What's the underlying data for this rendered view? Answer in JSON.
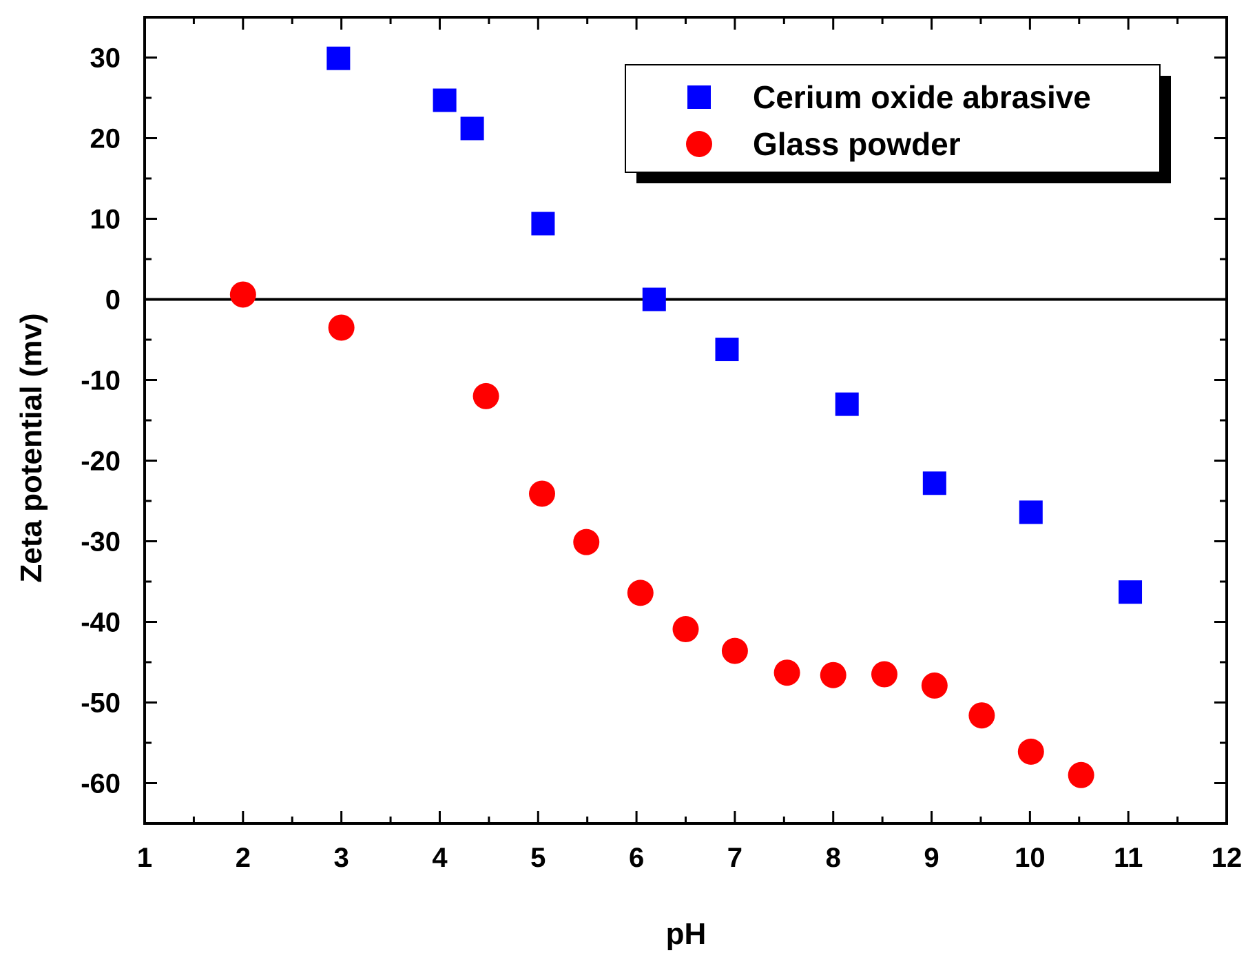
{
  "chart_data": {
    "type": "scatter",
    "title": "",
    "xlabel": "pH",
    "ylabel": "Zeta potential (mv)",
    "xlim": [
      1,
      12
    ],
    "ylim": [
      -65,
      35
    ],
    "xticks": [
      1,
      2,
      3,
      4,
      5,
      6,
      7,
      8,
      9,
      10,
      11,
      12
    ],
    "yticks": [
      30,
      20,
      10,
      0,
      -10,
      -20,
      -30,
      -40,
      -50,
      -60
    ],
    "xtick_labels": [
      "1",
      "2",
      "3",
      "4",
      "5",
      "6",
      "7",
      "8",
      "9",
      "10",
      "11",
      "12"
    ],
    "ytick_labels": [
      "30",
      "20",
      "10",
      "0",
      "-10",
      "-20",
      "-30",
      "-40",
      "-50",
      "-60"
    ],
    "reference_line_y": 0,
    "grid": false,
    "legend_position": "top-right",
    "series": [
      {
        "name": "Cerium oxide abrasive",
        "marker": "square",
        "color": "#0000ff",
        "x": [
          2.97,
          4.05,
          4.33,
          5.05,
          6.18,
          6.92,
          8.14,
          9.03,
          10.01,
          11.02
        ],
        "y": [
          29.9,
          24.7,
          21.2,
          9.4,
          0.0,
          -6.2,
          -13.0,
          -22.8,
          -26.4,
          -36.3
        ]
      },
      {
        "name": "Glass powder",
        "marker": "circle",
        "color": "#ff0000",
        "x": [
          2.0,
          3.0,
          4.47,
          5.04,
          5.49,
          6.04,
          6.5,
          7.0,
          7.53,
          8.0,
          8.52,
          9.03,
          9.51,
          10.01,
          10.52
        ],
        "y": [
          0.6,
          -3.5,
          -12.0,
          -24.1,
          -30.1,
          -36.4,
          -40.9,
          -43.6,
          -46.3,
          -46.6,
          -46.5,
          -47.9,
          -51.6,
          -56.1,
          -59.0
        ]
      }
    ]
  }
}
